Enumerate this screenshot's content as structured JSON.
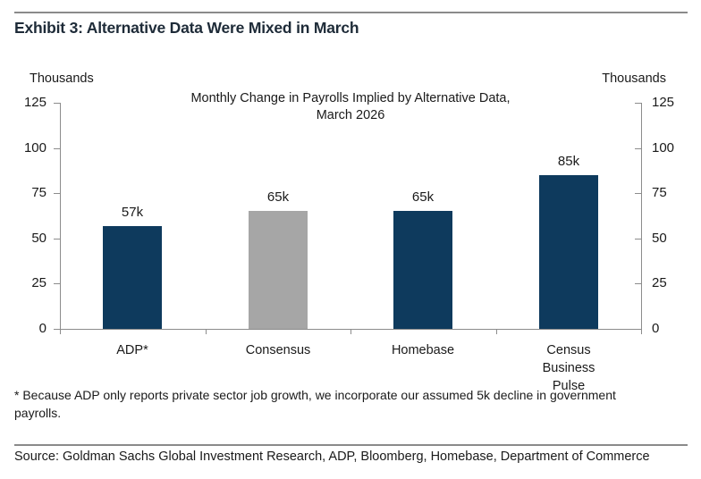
{
  "header": {
    "title": "Exhibit 3: Alternative Data Were Mixed in March"
  },
  "chart_data": {
    "type": "bar",
    "title_line1": "Monthly Change in Payrolls Implied by Alternative Data,",
    "title_line2": "March 2026",
    "axis_unit_left": "Thousands",
    "axis_unit_right": "Thousands",
    "ylim": [
      0,
      125
    ],
    "yticks": [
      0,
      25,
      50,
      75,
      100,
      125
    ],
    "grid": false,
    "legend": "none",
    "categories": [
      "ADP*",
      "Consensus",
      "Homebase",
      "Census Business Pulse"
    ],
    "values": [
      57,
      65,
      65,
      85
    ],
    "bars": [
      {
        "category": "ADP*",
        "category_lines": "ADP*",
        "value": 57,
        "value_label": "57k",
        "color": "#0E3A5D"
      },
      {
        "category": "Consensus",
        "category_lines": "Consensus",
        "value": 65,
        "value_label": "65k",
        "color": "#A6A6A6"
      },
      {
        "category": "Homebase",
        "category_lines": "Homebase",
        "value": 65,
        "value_label": "65k",
        "color": "#0E3A5D"
      },
      {
        "category": "Census Business Pulse",
        "category_lines": "Census\nBusiness\nPulse",
        "value": 85,
        "value_label": "85k",
        "color": "#0E3A5D"
      }
    ],
    "colors": {
      "bar_navy": "#0E3A5D",
      "bar_gray": "#A6A6A6",
      "axis_line": "#8C8C8C",
      "text": "#1A1A1A"
    }
  },
  "footnote": {
    "text": "* Because ADP only reports private sector job growth, we incorporate our assumed 5k decline in government\npayrolls."
  },
  "source": {
    "text": "Source: Goldman Sachs Global Investment Research, ADP, Bloomberg, Homebase, Department of Commerce"
  }
}
